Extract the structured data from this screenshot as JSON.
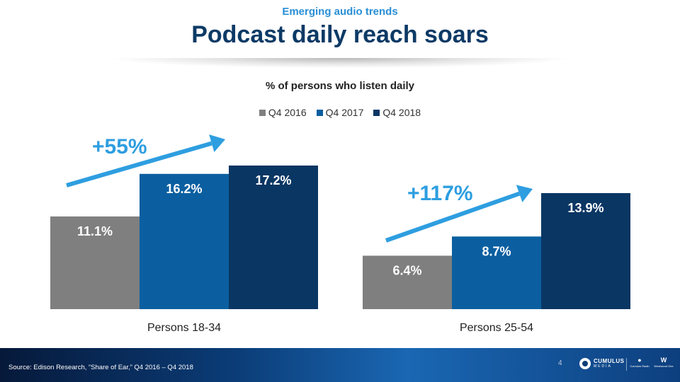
{
  "header": {
    "eyebrow": "Emerging audio trends",
    "title": "Podcast daily reach soars"
  },
  "chart_data": {
    "type": "bar",
    "title": "% of persons who listen daily",
    "categories": [
      "Persons 18-34",
      "Persons 25-54"
    ],
    "series": [
      {
        "name": "Q4 2016",
        "color": "#7f7f7f",
        "values": [
          11.1,
          6.4
        ],
        "labels": [
          "11.1%",
          "6.4%"
        ]
      },
      {
        "name": "Q4 2017",
        "color": "#0b5fa0",
        "values": [
          16.2,
          8.7
        ],
        "labels": [
          "16.2%",
          "8.7%"
        ]
      },
      {
        "name": "Q4 2018",
        "color": "#0a3663",
        "values": [
          17.2,
          13.9
        ],
        "labels": [
          "17.2%",
          "13.9%"
        ]
      }
    ],
    "annotations": [
      "+55%",
      "+117%"
    ],
    "annotation_color": "#2e9ee0",
    "ylim": [
      0,
      17.2
    ],
    "grid": false,
    "legend": "top-center"
  },
  "footer": {
    "source": "Source: Edison Research, “Share of Ear,” Q4 2016 – Q4 2018",
    "page_number": "4",
    "logo_name": "CUMULUS",
    "logo_sub": "MEDIA",
    "logo2": "Cumulus Radio",
    "logo3": "Westwood One"
  }
}
